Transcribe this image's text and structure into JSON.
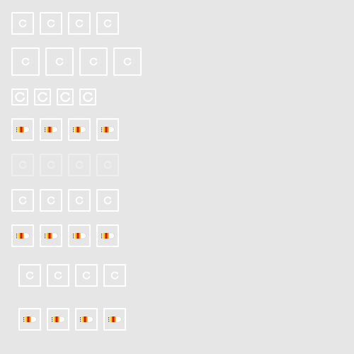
{
  "rows": [
    {
      "name": "refresh-row-medium",
      "icon": "refresh-icon",
      "count": 4,
      "state": "enabled"
    },
    {
      "name": "refresh-row-large",
      "icon": "refresh-icon",
      "count": 4,
      "state": "enabled"
    },
    {
      "name": "refresh-row-small",
      "icon": "refresh-icon",
      "count": 4,
      "state": "enabled"
    },
    {
      "name": "loading-row",
      "icon": "loading-spinner-icon",
      "count": 4,
      "state": "loading"
    },
    {
      "name": "refresh-row-disabled",
      "icon": "refresh-icon",
      "count": 4,
      "state": "disabled"
    },
    {
      "name": "refresh-row-default",
      "icon": "refresh-icon",
      "count": 4,
      "state": "enabled"
    },
    {
      "name": "loading-row-2",
      "icon": "loading-spinner-icon",
      "count": 4,
      "state": "loading"
    },
    {
      "name": "refresh-row-indented",
      "icon": "refresh-icon",
      "count": 4,
      "state": "enabled"
    },
    {
      "name": "loading-row-indented",
      "icon": "loading-spinner-icon",
      "count": 4,
      "state": "loading"
    }
  ],
  "colors": {
    "background": "#e6e6e6",
    "border": "#ffffff",
    "spinner_red": "#e01010",
    "spinner_orange": "#f59a00",
    "spinner_yellow": "#f5d000"
  }
}
